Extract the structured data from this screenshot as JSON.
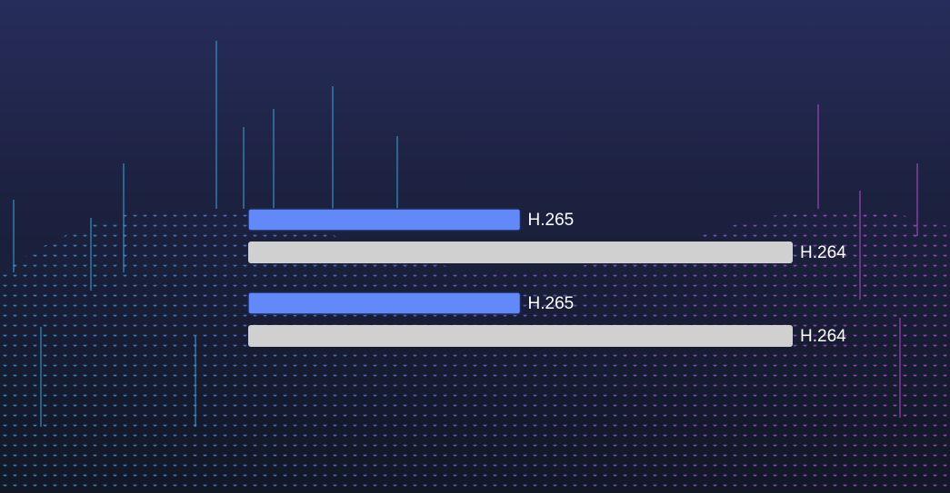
{
  "chart_data": {
    "type": "bar",
    "orientation": "horizontal",
    "categories": [
      null,
      null
    ],
    "series": [
      {
        "name": "H.265",
        "color": "#6388f8",
        "values": [
          50,
          50
        ]
      },
      {
        "name": "H.264",
        "color": "#d0d0d0",
        "values": [
          100,
          100
        ]
      }
    ],
    "xlim": [
      0,
      100
    ]
  }
}
